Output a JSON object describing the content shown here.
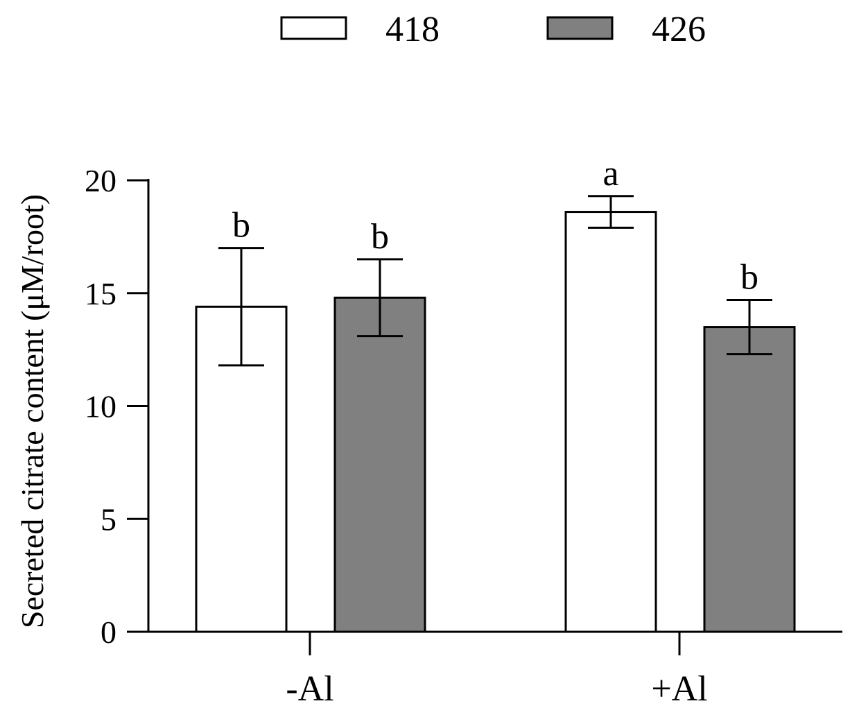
{
  "chart_data": {
    "type": "bar",
    "categories": [
      "-Al",
      "+Al"
    ],
    "series": [
      {
        "name": "418",
        "color": "#ffffff",
        "values": [
          14.4,
          18.6
        ],
        "error": [
          2.6,
          0.7
        ],
        "labels": [
          "b",
          "a"
        ]
      },
      {
        "name": "426",
        "color": "#808080",
        "values": [
          14.8,
          13.5
        ],
        "error": [
          1.7,
          1.2
        ],
        "labels": [
          "b",
          "b"
        ]
      }
    ],
    "ylabel": "Secreted citrate content (μM/root)",
    "xlabel": "",
    "ylim": [
      0,
      20
    ],
    "yticks": [
      0,
      5,
      10,
      15,
      20
    ],
    "grid": false,
    "legend": "top-center"
  }
}
